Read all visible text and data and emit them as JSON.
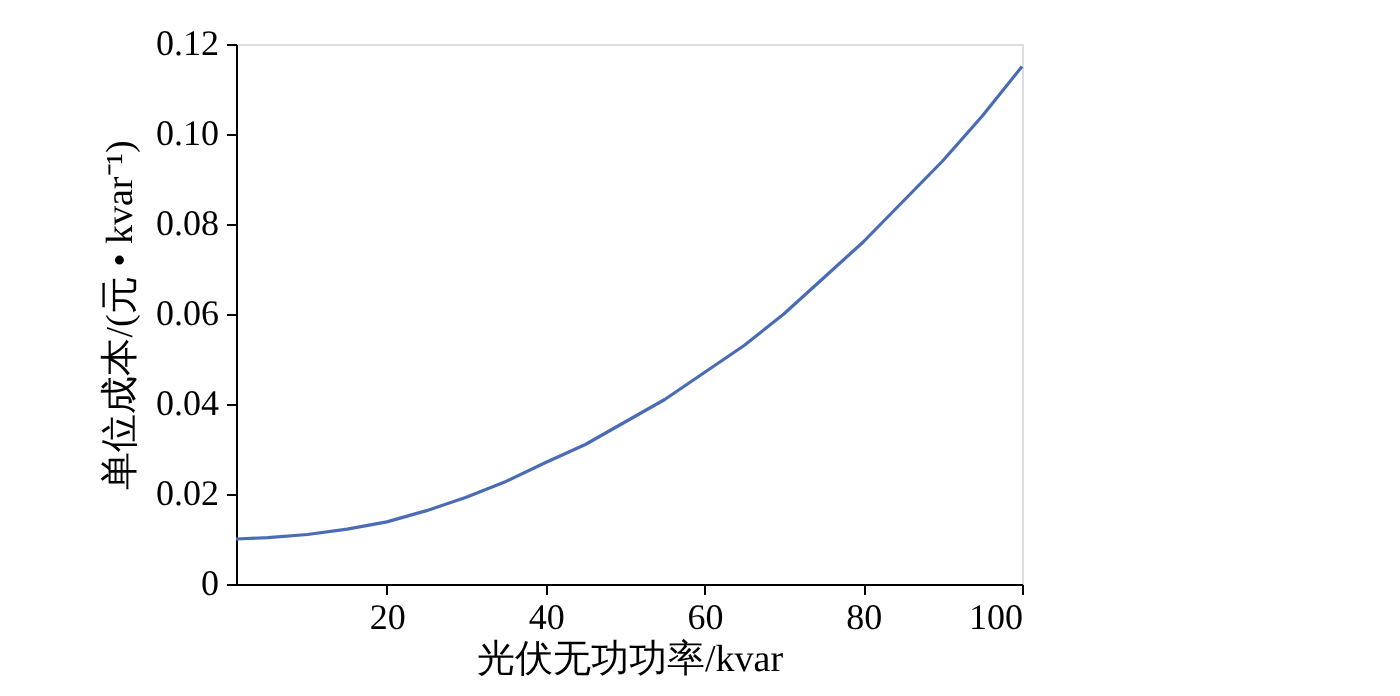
{
  "chart_data": {
    "type": "line",
    "xlabel": "光伏无功功率/kvar",
    "ylabel": "单位成本/(元 • kvar⁻¹)",
    "x": [
      1,
      5,
      10,
      15,
      20,
      25,
      30,
      35,
      40,
      45,
      50,
      55,
      60,
      65,
      70,
      75,
      80,
      85,
      90,
      95,
      100
    ],
    "series": [
      {
        "color": "#4a6bb5",
        "values": [
          0.01,
          0.0103,
          0.011,
          0.0122,
          0.0138,
          0.0163,
          0.0193,
          0.0228,
          0.027,
          0.031,
          0.036,
          0.041,
          0.047,
          0.053,
          0.06,
          0.068,
          0.076,
          0.085,
          0.094,
          0.104,
          0.115
        ]
      }
    ],
    "xlim": [
      1,
      100
    ],
    "xticks": [
      20,
      40,
      60,
      80,
      100
    ],
    "ylim": [
      0,
      0.12
    ],
    "yticks": [
      0,
      0.02,
      0.04,
      0.06,
      0.08,
      {
        "value": 0.1,
        "label": "0.10"
      },
      0.12
    ],
    "grid": false,
    "line_style": "solid",
    "marker": "none"
  }
}
